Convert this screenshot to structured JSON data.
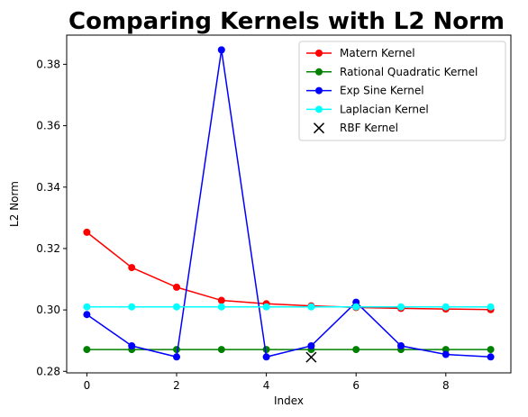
{
  "chart_data": {
    "type": "line",
    "title": "Comparing Kernels with L2 Norm",
    "xlabel": "Index",
    "ylabel": "L2 Norm",
    "xlim": [
      -0.45,
      9.45
    ],
    "ylim": [
      0.2795,
      0.3895
    ],
    "xticks": [
      0,
      2,
      4,
      6,
      8
    ],
    "yticks": [
      0.28,
      0.3,
      0.32,
      0.34,
      0.36,
      0.38
    ],
    "grid": false,
    "legend_position": "top-right",
    "x": [
      0,
      1,
      2,
      3,
      4,
      5,
      6,
      7,
      8,
      9
    ],
    "series": [
      {
        "name": "Matern Kernel",
        "color": "#ff0000",
        "marker": "circle",
        "values": [
          0.3253,
          0.3138,
          0.3074,
          0.3031,
          0.302,
          0.3013,
          0.3008,
          0.3005,
          0.3003,
          0.3001
        ]
      },
      {
        "name": "Rational Quadratic Kernel",
        "color": "#008000",
        "marker": "circle",
        "values": [
          0.2871,
          0.2871,
          0.2871,
          0.2871,
          0.2871,
          0.2871,
          0.2871,
          0.2871,
          0.2871,
          0.2871
        ]
      },
      {
        "name": "Exp Sine Kernel",
        "color": "#0000ff",
        "marker": "circle",
        "values": [
          0.2985,
          0.2883,
          0.2847,
          0.3847,
          0.2847,
          0.2883,
          0.3025,
          0.2883,
          0.2855,
          0.2847
        ]
      },
      {
        "name": "Laplacian Kernel",
        "color": "#00ffff",
        "marker": "circle",
        "values": [
          0.301,
          0.301,
          0.301,
          0.301,
          0.301,
          0.301,
          0.301,
          0.301,
          0.301,
          0.301
        ]
      }
    ],
    "points": [
      {
        "name": "RBF Kernel",
        "color": "#000000",
        "marker": "x",
        "x": 5,
        "y": 0.2846
      }
    ]
  }
}
